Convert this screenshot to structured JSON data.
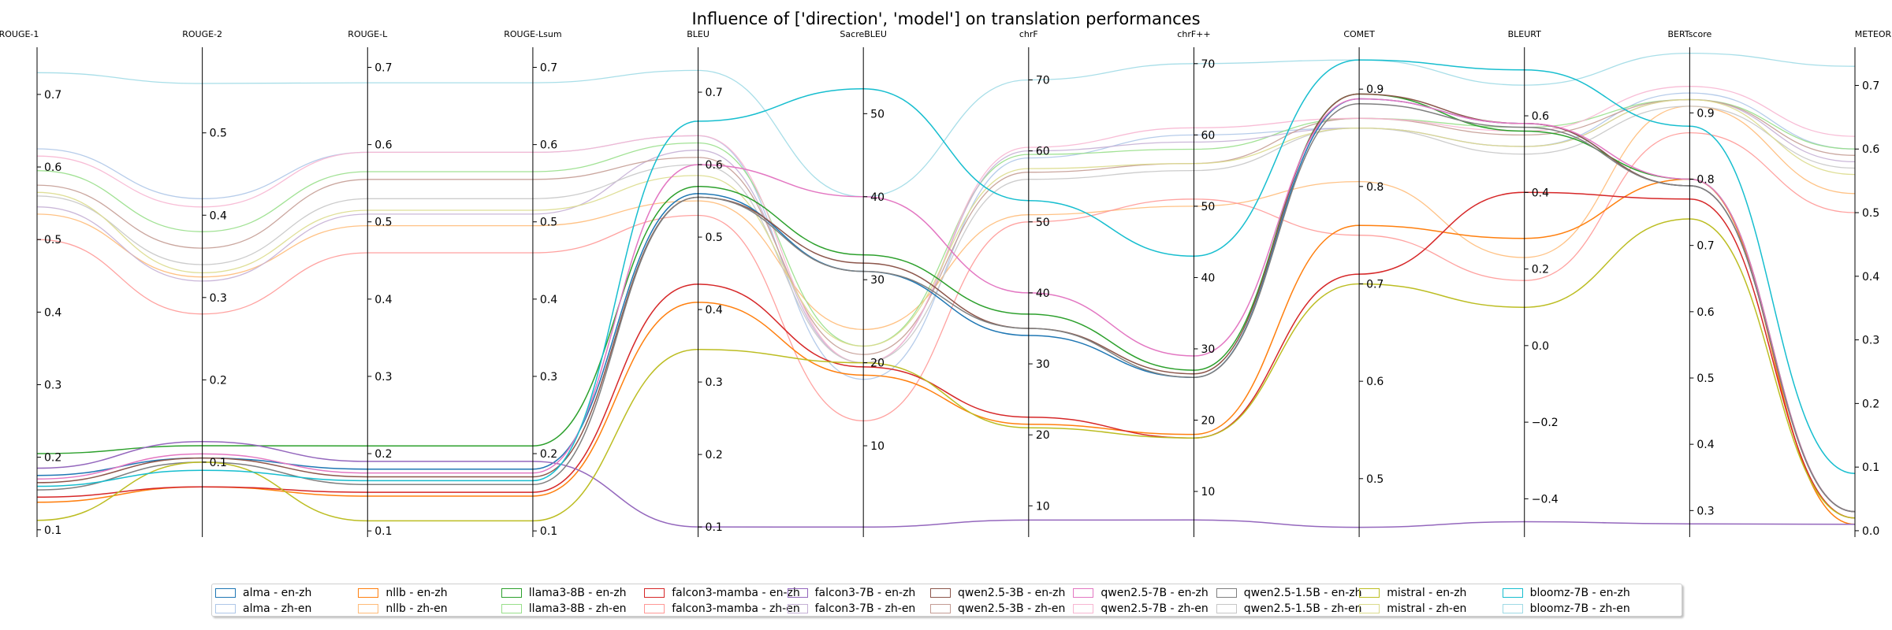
{
  "chart_data": {
    "type": "line",
    "subtype": "parallel-coordinates",
    "title": "Influence of ['direction', 'model'] on translation performances",
    "legend_position": "bottom-center",
    "grid": false,
    "axes": [
      {
        "name": "ROUGE-1",
        "range": [
          0.09,
          0.765
        ],
        "ticks": [
          0.1,
          0.2,
          0.3,
          0.4,
          0.5,
          0.6,
          0.7
        ],
        "tick_labels": [
          "0.1",
          "0.2",
          "0.3",
          "0.4",
          "0.5",
          "0.6",
          "0.7"
        ]
      },
      {
        "name": "ROUGE-2",
        "range": [
          0.009,
          0.604
        ],
        "ticks": [
          0.1,
          0.2,
          0.3,
          0.4,
          0.5
        ],
        "tick_labels": [
          "0.1",
          "0.2",
          "0.3",
          "0.4",
          "0.5"
        ]
      },
      {
        "name": "ROUGE-L",
        "range": [
          0.092,
          0.726
        ],
        "ticks": [
          0.1,
          0.2,
          0.3,
          0.4,
          0.5,
          0.6,
          0.7
        ],
        "tick_labels": [
          "0.1",
          "0.2",
          "0.3",
          "0.4",
          "0.5",
          "0.6",
          "0.7"
        ]
      },
      {
        "name": "ROUGE-Lsum",
        "range": [
          0.092,
          0.726
        ],
        "ticks": [
          0.1,
          0.2,
          0.3,
          0.4,
          0.5,
          0.6,
          0.7
        ],
        "tick_labels": [
          "0.1",
          "0.2",
          "0.3",
          "0.4",
          "0.5",
          "0.6",
          "0.7"
        ]
      },
      {
        "name": "BLEU",
        "range": [
          0.086,
          0.762
        ],
        "ticks": [
          0.1,
          0.2,
          0.3,
          0.4,
          0.5,
          0.6,
          0.7
        ],
        "tick_labels": [
          "0.1",
          "0.2",
          "0.3",
          "0.4",
          "0.5",
          "0.6",
          "0.7"
        ]
      },
      {
        "name": "SacreBLEU",
        "range": [
          -1.0,
          58.0
        ],
        "ticks": [
          10,
          20,
          30,
          40,
          50
        ],
        "tick_labels": [
          "10",
          "20",
          "30",
          "40",
          "50"
        ]
      },
      {
        "name": "chrF",
        "range": [
          5.6,
          74.6
        ],
        "ticks": [
          10,
          20,
          30,
          40,
          50,
          60,
          70
        ],
        "tick_labels": [
          "10",
          "20",
          "30",
          "40",
          "50",
          "60",
          "70"
        ]
      },
      {
        "name": "chrF++",
        "range": [
          3.6,
          72.3
        ],
        "ticks": [
          10,
          20,
          30,
          40,
          50,
          60,
          70
        ],
        "tick_labels": [
          "10",
          "20",
          "30",
          "40",
          "50",
          "60",
          "70"
        ]
      },
      {
        "name": "COMET",
        "range": [
          0.44,
          0.943
        ],
        "ticks": [
          0.5,
          0.6,
          0.7,
          0.8,
          0.9
        ],
        "tick_labels": [
          "0.5",
          "0.6",
          "0.7",
          "0.8",
          "0.9"
        ]
      },
      {
        "name": "BLEURT",
        "range": [
          -0.5,
          0.779
        ],
        "ticks": [
          -0.4,
          -0.2,
          0.0,
          0.2,
          0.4,
          0.6
        ],
        "tick_labels": [
          "−0.4",
          "−0.2",
          "0.0",
          "0.2",
          "0.4",
          "0.6"
        ]
      },
      {
        "name": "BERTscore",
        "range": [
          0.26,
          0.999
        ],
        "ticks": [
          0.3,
          0.4,
          0.5,
          0.6,
          0.7,
          0.8,
          0.9
        ],
        "tick_labels": [
          "0.3",
          "0.4",
          "0.5",
          "0.6",
          "0.7",
          "0.8",
          "0.9"
        ]
      },
      {
        "name": "METEOR",
        "range": [
          -0.01,
          0.76
        ],
        "ticks": [
          0.0,
          0.1,
          0.2,
          0.3,
          0.4,
          0.5,
          0.6,
          0.7
        ],
        "tick_labels": [
          "0.0",
          "0.1",
          "0.2",
          "0.3",
          "0.4",
          "0.5",
          "0.6",
          "0.7"
        ]
      }
    ],
    "series": [
      {
        "name": "alma - en-zh",
        "color": "#1f77b4",
        "faded": false,
        "values": [
          0.175,
          0.105,
          0.18,
          0.18,
          0.56,
          31.0,
          34.0,
          26.0,
          0.89,
          0.58,
          0.79,
          0.03
        ]
      },
      {
        "name": "alma - zh-en",
        "color": "#aec7e8",
        "faded": true,
        "values": [
          0.625,
          0.42,
          0.59,
          0.59,
          0.64,
          18.0,
          59.0,
          60.0,
          0.86,
          0.52,
          0.93,
          0.6
        ]
      },
      {
        "name": "nllb - en-zh",
        "color": "#ff7f0e",
        "faded": false,
        "values": [
          0.138,
          0.07,
          0.145,
          0.145,
          0.41,
          18.5,
          21.5,
          18.0,
          0.76,
          0.28,
          0.8,
          0.01
        ]
      },
      {
        "name": "nllb - zh-en",
        "color": "#ffbb78",
        "faded": true,
        "values": [
          0.535,
          0.325,
          0.495,
          0.495,
          0.55,
          24.0,
          51.0,
          50.0,
          0.805,
          0.23,
          0.91,
          0.53
        ]
      },
      {
        "name": "llama3-8B - en-zh",
        "color": "#2ca02c",
        "faded": false,
        "values": [
          0.205,
          0.12,
          0.21,
          0.21,
          0.57,
          33.0,
          37.0,
          27.0,
          0.895,
          0.56,
          0.8,
          0.03
        ]
      },
      {
        "name": "llama3-8B - zh-en",
        "color": "#98df8a",
        "faded": true,
        "values": [
          0.595,
          0.38,
          0.565,
          0.565,
          0.63,
          22.0,
          59.5,
          58.0,
          0.87,
          0.57,
          0.92,
          0.6
        ]
      },
      {
        "name": "falcon3-mamba - en-zh",
        "color": "#d62728",
        "faded": false,
        "values": [
          0.145,
          0.07,
          0.15,
          0.15,
          0.435,
          19.5,
          22.5,
          17.5,
          0.71,
          0.4,
          0.77,
          0.02
        ]
      },
      {
        "name": "falcon3-mamba - zh-en",
        "color": "#ff9896",
        "faded": true,
        "values": [
          0.5,
          0.28,
          0.46,
          0.46,
          0.53,
          13.0,
          50.0,
          51.0,
          0.75,
          0.17,
          0.87,
          0.5
        ]
      },
      {
        "name": "falcon3-7B - en-zh",
        "color": "#9467bd",
        "faded": false,
        "values": [
          0.185,
          0.125,
          0.19,
          0.19,
          0.1,
          0.2,
          8.0,
          6.0,
          0.45,
          -0.46,
          0.28,
          0.01
        ]
      },
      {
        "name": "falcon3-7B - zh-en",
        "color": "#c5b0d5",
        "faded": true,
        "values": [
          0.545,
          0.32,
          0.51,
          0.51,
          0.62,
          20.0,
          60.0,
          59.0,
          0.86,
          0.52,
          0.92,
          0.58
        ]
      },
      {
        "name": "qwen2.5-3B - en-zh",
        "color": "#8c564b",
        "faded": false,
        "values": [
          0.165,
          0.105,
          0.17,
          0.17,
          0.555,
          32.0,
          35.0,
          26.5,
          0.895,
          0.58,
          0.79,
          0.03
        ]
      },
      {
        "name": "qwen2.5-3B - zh-en",
        "color": "#c49c94",
        "faded": true,
        "values": [
          0.575,
          0.36,
          0.555,
          0.555,
          0.61,
          21.0,
          57.0,
          56.0,
          0.87,
          0.55,
          0.92,
          0.59
        ]
      },
      {
        "name": "qwen2.5-7B - en-zh",
        "color": "#e377c2",
        "faded": false,
        "values": [
          0.17,
          0.11,
          0.175,
          0.175,
          0.6,
          40.0,
          40.0,
          29.0,
          0.89,
          0.58,
          0.8,
          0.03
        ]
      },
      {
        "name": "qwen2.5-7B - zh-en",
        "color": "#f7b6d2",
        "faded": true,
        "values": [
          0.615,
          0.41,
          0.59,
          0.59,
          0.64,
          20.0,
          60.5,
          61.0,
          0.87,
          0.56,
          0.94,
          0.62
        ]
      },
      {
        "name": "qwen2.5-1.5B - en-zh",
        "color": "#7f7f7f",
        "faded": false,
        "values": [
          0.155,
          0.1,
          0.16,
          0.16,
          0.555,
          31.0,
          35.0,
          26.0,
          0.885,
          0.57,
          0.79,
          0.03
        ]
      },
      {
        "name": "qwen2.5-1.5B - zh-en",
        "color": "#c7c7c7",
        "faded": true,
        "values": [
          0.56,
          0.34,
          0.53,
          0.53,
          0.6,
          20.0,
          56.0,
          55.0,
          0.86,
          0.5,
          0.91,
          0.57
        ]
      },
      {
        "name": "mistral - en-zh",
        "color": "#bcbd22",
        "faded": false,
        "values": [
          0.113,
          0.1,
          0.113,
          0.113,
          0.345,
          20.0,
          21.0,
          17.5,
          0.7,
          0.1,
          0.74,
          0.02
        ]
      },
      {
        "name": "mistral - zh-en",
        "color": "#dbdb8d",
        "faded": true,
        "values": [
          0.565,
          0.33,
          0.515,
          0.515,
          0.585,
          22.0,
          57.5,
          56.0,
          0.86,
          0.52,
          0.92,
          0.56
        ]
      },
      {
        "name": "bloomz-7B - en-zh",
        "color": "#17becf",
        "faded": false,
        "values": [
          0.16,
          0.09,
          0.165,
          0.165,
          0.66,
          53.0,
          53.0,
          43.0,
          0.93,
          0.72,
          0.88,
          0.09
        ]
      },
      {
        "name": "bloomz-7B - zh-en",
        "color": "#9edae5",
        "faded": true,
        "values": [
          0.73,
          0.56,
          0.68,
          0.68,
          0.73,
          40.0,
          70.0,
          70.0,
          0.93,
          0.68,
          0.99,
          0.73
        ]
      }
    ]
  }
}
